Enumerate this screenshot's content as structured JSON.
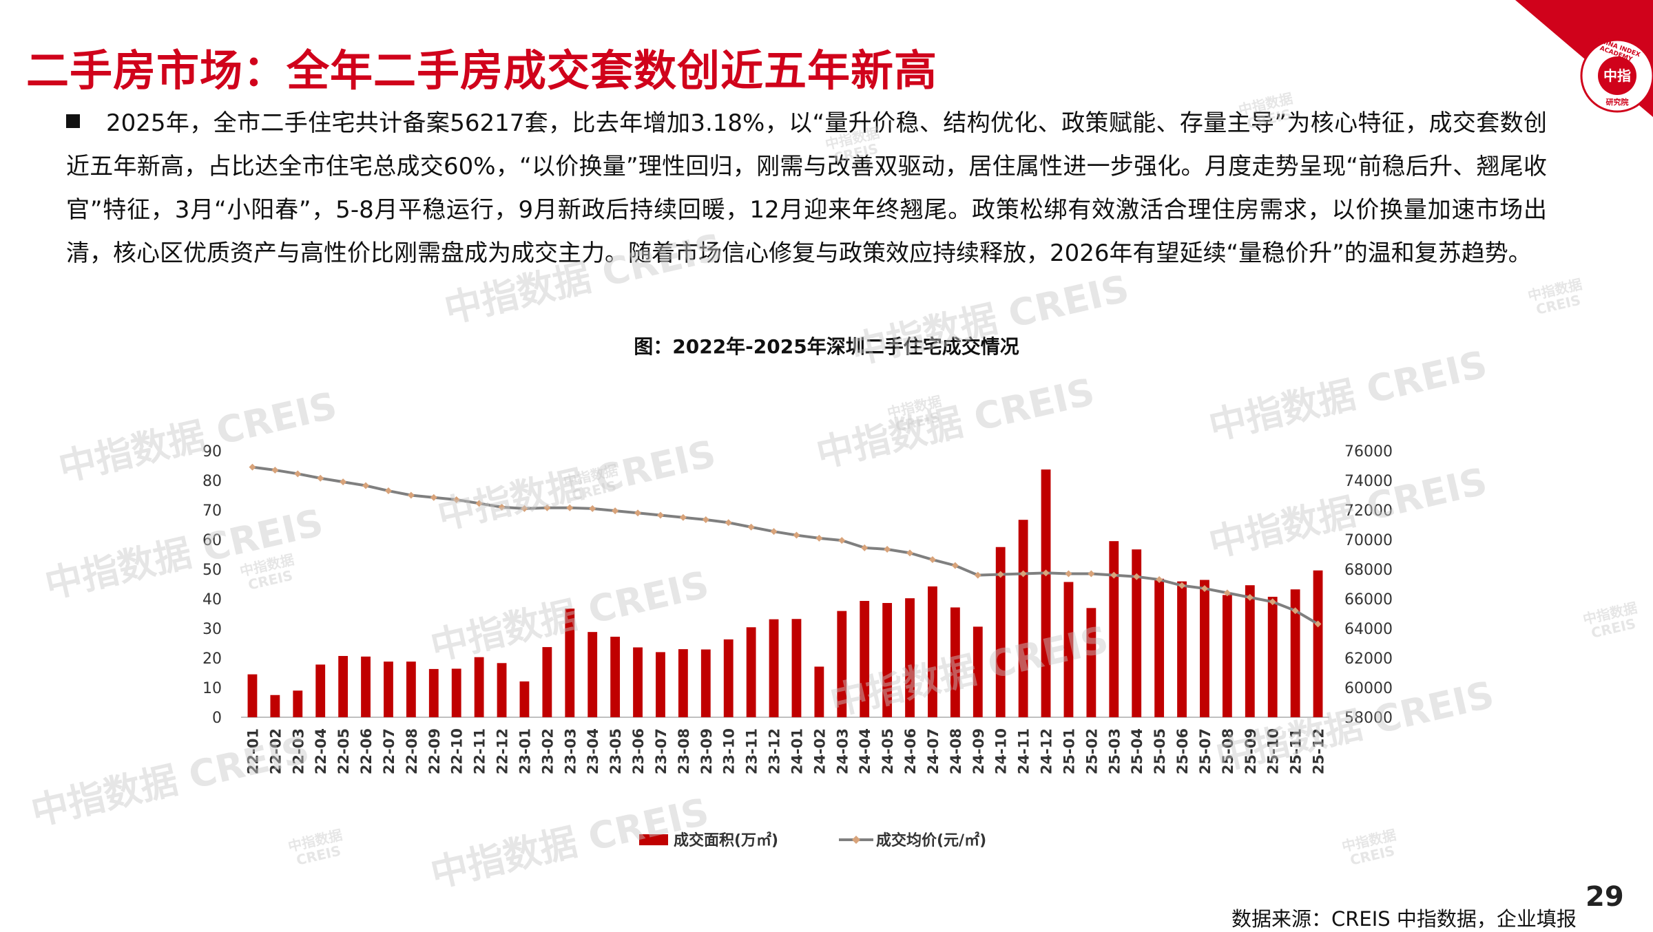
{
  "header": {
    "title": "二手房市场：全年二手房成交套数创近五年新高",
    "logo_text": "中指",
    "logo_ring_text": "CHINA INDEX ACADEMY",
    "logo_bottom_text": "研究院"
  },
  "summary": {
    "paragraph": "2025年，全市二手住宅共计备案56217套，比去年增加3.18%，以“量升价稳、结构优化、政策赋能、存量主导”为核心特征，成交套数创近五年新高，占比达全市住宅总成交60%，“以价换量”理性回归，刚需与改善双驱动，居住属性进一步强化。月度走势呈现“前稳后升、翘尾收官”特征，3月“小阳春”，5-8月平稳运行，9月新政后持续回暖，12月迎来年终翘尾。政策松绑有效激活合理住房需求，以价换量加速市场出清，核心区优质资产与高性价比刚需盘成为成交主力。随着市场信心修复与政策效应持续释放，2026年有望延续“量稳价升”的温和复苏趋势。"
  },
  "chart_data": {
    "type": "bar",
    "title": "图：2022年-2025年深圳二手住宅成交情况",
    "categories": [
      "22-01",
      "22-02",
      "22-03",
      "22-04",
      "22-05",
      "22-06",
      "22-07",
      "22-08",
      "22-09",
      "22-10",
      "22-11",
      "22-12",
      "23-01",
      "23-02",
      "23-03",
      "23-04",
      "23-05",
      "23-06",
      "23-07",
      "23-08",
      "23-09",
      "23-10",
      "23-11",
      "23-12",
      "24-01",
      "24-02",
      "24-03",
      "24-04",
      "24-05",
      "24-06",
      "24-07",
      "24-08",
      "24-09",
      "24-10",
      "24-11",
      "24-12",
      "25-01",
      "25-02",
      "25-03",
      "25-04",
      "25-05",
      "25-06",
      "25-07",
      "25-08",
      "25-09",
      "25-10",
      "25-11",
      "25-12"
    ],
    "series": [
      {
        "name": "成交面积(万㎡)",
        "type": "bar",
        "axis": "left",
        "color": "#c00000",
        "values": [
          14.5,
          7.5,
          9,
          17.8,
          20.7,
          20.5,
          18.8,
          18.8,
          16.3,
          16.4,
          20.3,
          18.3,
          12.1,
          23.7,
          36.7,
          28.8,
          27.2,
          23.6,
          22,
          23,
          22.9,
          26.3,
          30.4,
          33.1,
          33.2,
          17.1,
          35.9,
          39.3,
          38.6,
          40.2,
          44.2,
          37.1,
          30.6,
          57.5,
          66.7,
          83.7,
          45.7,
          36.9,
          59.5,
          56.7,
          46.8,
          45.9,
          46.4,
          41.3,
          44.6,
          40.7,
          43.2,
          49.6
        ]
      },
      {
        "name": "成交均价(元/㎡)",
        "type": "line",
        "axis": "right",
        "color": "#7f7f7f",
        "marker_color": "#d8a37a",
        "values": [
          74900,
          74700,
          74450,
          74150,
          73900,
          73650,
          73300,
          73000,
          72850,
          72700,
          72450,
          72200,
          72100,
          72150,
          72150,
          72100,
          71950,
          71800,
          71650,
          71500,
          71350,
          71150,
          70850,
          70550,
          70300,
          70100,
          69950,
          69450,
          69350,
          69100,
          68650,
          68250,
          67600,
          67650,
          67700,
          67750,
          67700,
          67700,
          67600,
          67500,
          67300,
          66900,
          66700,
          66400,
          66100,
          65800,
          65200,
          64300
        ]
      }
    ],
    "y_left": {
      "min": 0,
      "max": 90,
      "step": 10,
      "ticks": [
        "0",
        "10",
        "20",
        "30",
        "40",
        "50",
        "60",
        "70",
        "80",
        "90"
      ]
    },
    "y_right": {
      "min": 58000,
      "max": 76000,
      "step": 2000,
      "ticks": [
        "58000",
        "60000",
        "62000",
        "64000",
        "66000",
        "68000",
        "70000",
        "72000",
        "74000",
        "76000"
      ]
    },
    "legend_position": "bottom",
    "grid": false
  },
  "watermarks": {
    "main": "中指数据 CREIS",
    "small_top": "中指数据",
    "small_bottom": "CREIS"
  },
  "footer": {
    "source": "数据来源：CREIS 中指数据，企业填报",
    "page_number": "29"
  },
  "colors": {
    "brand_red": "#d0021b",
    "bar_red": "#c00000",
    "line_gray": "#7f7f7f",
    "marker_tan": "#d8a37a"
  }
}
